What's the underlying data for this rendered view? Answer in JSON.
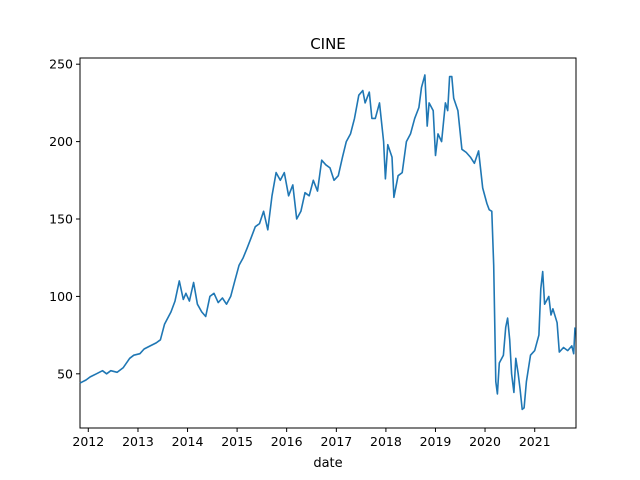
{
  "chart_data": {
    "type": "line",
    "title": "CINE",
    "xlabel": "date",
    "ylabel": "",
    "xlim": [
      "2011-11-01",
      "2021-11-01"
    ],
    "ylim": [
      15,
      254
    ],
    "grid": false,
    "legend": "none",
    "x_tick_labels": [
      "2012",
      "2013",
      "2014",
      "2015",
      "2016",
      "2017",
      "2018",
      "2019",
      "2020",
      "2021"
    ],
    "y_ticks": [
      50,
      100,
      150,
      200,
      250
    ],
    "series": [
      {
        "color": "#1f77b4",
        "points": [
          [
            "2011-11-01",
            44
          ],
          [
            "2011-12-15",
            46
          ],
          [
            "2012-01-15",
            48
          ],
          [
            "2012-03-01",
            50
          ],
          [
            "2012-04-15",
            52
          ],
          [
            "2012-05-15",
            50
          ],
          [
            "2012-06-15",
            52
          ],
          [
            "2012-08-01",
            51
          ],
          [
            "2012-09-15",
            54
          ],
          [
            "2012-11-01",
            60
          ],
          [
            "2012-12-01",
            62
          ],
          [
            "2013-01-15",
            63
          ],
          [
            "2013-02-15",
            66
          ],
          [
            "2013-04-01",
            68
          ],
          [
            "2013-05-15",
            70
          ],
          [
            "2013-06-15",
            72
          ],
          [
            "2013-07-15",
            82
          ],
          [
            "2013-09-01",
            90
          ],
          [
            "2013-10-01",
            97
          ],
          [
            "2013-11-01",
            110
          ],
          [
            "2013-12-01",
            98
          ],
          [
            "2013-12-20",
            102
          ],
          [
            "2014-01-15",
            97
          ],
          [
            "2014-02-15",
            109
          ],
          [
            "2014-03-15",
            95
          ],
          [
            "2014-04-15",
            90
          ],
          [
            "2014-05-15",
            87
          ],
          [
            "2014-06-15",
            100
          ],
          [
            "2014-07-15",
            102
          ],
          [
            "2014-08-15",
            96
          ],
          [
            "2014-09-15",
            99
          ],
          [
            "2014-10-15",
            95
          ],
          [
            "2014-11-15",
            100
          ],
          [
            "2014-12-15",
            110
          ],
          [
            "2015-01-15",
            120
          ],
          [
            "2015-02-15",
            125
          ],
          [
            "2015-03-15",
            131
          ],
          [
            "2015-04-15",
            138
          ],
          [
            "2015-05-15",
            145
          ],
          [
            "2015-06-15",
            147
          ],
          [
            "2015-07-15",
            155
          ],
          [
            "2015-08-15",
            143
          ],
          [
            "2015-09-15",
            165
          ],
          [
            "2015-10-15",
            180
          ],
          [
            "2015-11-15",
            175
          ],
          [
            "2015-12-15",
            180
          ],
          [
            "2016-01-15",
            165
          ],
          [
            "2016-02-15",
            172
          ],
          [
            "2016-03-15",
            150
          ],
          [
            "2016-04-15",
            155
          ],
          [
            "2016-05-15",
            167
          ],
          [
            "2016-06-15",
            165
          ],
          [
            "2016-07-15",
            175
          ],
          [
            "2016-08-15",
            168
          ],
          [
            "2016-09-15",
            188
          ],
          [
            "2016-10-15",
            185
          ],
          [
            "2016-11-15",
            183
          ],
          [
            "2016-12-15",
            175
          ],
          [
            "2017-01-15",
            178
          ],
          [
            "2017-02-15",
            190
          ],
          [
            "2017-03-15",
            200
          ],
          [
            "2017-04-15",
            205
          ],
          [
            "2017-05-15",
            215
          ],
          [
            "2017-06-15",
            230
          ],
          [
            "2017-07-15",
            233
          ],
          [
            "2017-08-01",
            225
          ],
          [
            "2017-09-01",
            232
          ],
          [
            "2017-09-20",
            215
          ],
          [
            "2017-10-15",
            215
          ],
          [
            "2017-11-15",
            225
          ],
          [
            "2017-12-15",
            200
          ],
          [
            "2017-12-28",
            176
          ],
          [
            "2018-01-15",
            198
          ],
          [
            "2018-02-15",
            190
          ],
          [
            "2018-03-01",
            164
          ],
          [
            "2018-04-01",
            178
          ],
          [
            "2018-05-01",
            180
          ],
          [
            "2018-06-01",
            200
          ],
          [
            "2018-07-01",
            205
          ],
          [
            "2018-08-01",
            215
          ],
          [
            "2018-09-01",
            222
          ],
          [
            "2018-09-20",
            235
          ],
          [
            "2018-10-15",
            243
          ],
          [
            "2018-11-01",
            210
          ],
          [
            "2018-11-15",
            225
          ],
          [
            "2018-12-15",
            220
          ],
          [
            "2019-01-01",
            191
          ],
          [
            "2019-01-20",
            205
          ],
          [
            "2019-02-15",
            200
          ],
          [
            "2019-03-15",
            225
          ],
          [
            "2019-04-01",
            220
          ],
          [
            "2019-04-15",
            242
          ],
          [
            "2019-05-01",
            242
          ],
          [
            "2019-05-15",
            228
          ],
          [
            "2019-06-15",
            220
          ],
          [
            "2019-07-15",
            195
          ],
          [
            "2019-08-15",
            193
          ],
          [
            "2019-09-15",
            190
          ],
          [
            "2019-10-15",
            186
          ],
          [
            "2019-11-15",
            194
          ],
          [
            "2019-12-15",
            170
          ],
          [
            "2020-01-15",
            160
          ],
          [
            "2020-02-01",
            156
          ],
          [
            "2020-02-20",
            155
          ],
          [
            "2020-03-05",
            120
          ],
          [
            "2020-03-20",
            45
          ],
          [
            "2020-04-01",
            37
          ],
          [
            "2020-04-15",
            57
          ],
          [
            "2020-05-15",
            62
          ],
          [
            "2020-06-01",
            80
          ],
          [
            "2020-06-15",
            86
          ],
          [
            "2020-07-01",
            72
          ],
          [
            "2020-07-15",
            50
          ],
          [
            "2020-08-01",
            38
          ],
          [
            "2020-08-15",
            60
          ],
          [
            "2020-09-01",
            50
          ],
          [
            "2020-09-15",
            40
          ],
          [
            "2020-10-01",
            27
          ],
          [
            "2020-10-15",
            28
          ],
          [
            "2020-11-01",
            45
          ],
          [
            "2020-12-01",
            62
          ],
          [
            "2021-01-01",
            65
          ],
          [
            "2021-02-01",
            75
          ],
          [
            "2021-02-15",
            105
          ],
          [
            "2021-03-01",
            116
          ],
          [
            "2021-03-15",
            95
          ],
          [
            "2021-04-15",
            100
          ],
          [
            "2021-05-01",
            88
          ],
          [
            "2021-05-15",
            92
          ],
          [
            "2021-06-15",
            83
          ],
          [
            "2021-07-01",
            64
          ],
          [
            "2021-08-01",
            67
          ],
          [
            "2021-09-01",
            65
          ],
          [
            "2021-10-01",
            68
          ],
          [
            "2021-10-15",
            63
          ],
          [
            "2021-10-25",
            80
          ]
        ]
      }
    ]
  }
}
